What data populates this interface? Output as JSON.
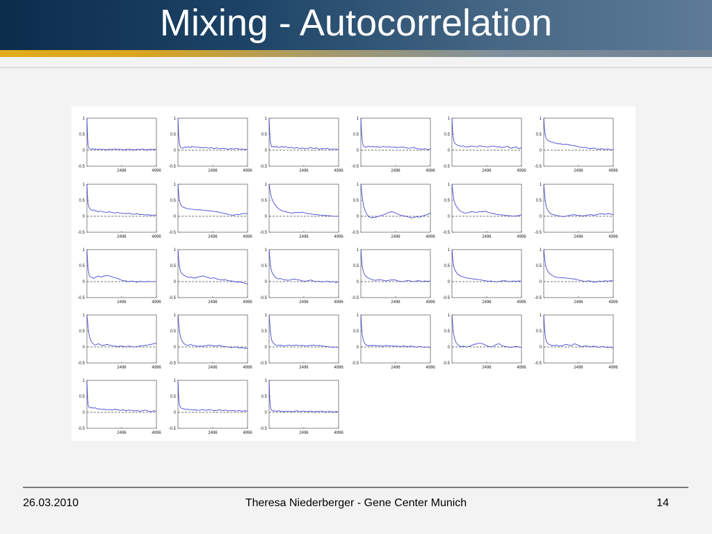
{
  "slide": {
    "title": "Mixing - Autocorrelation",
    "footer": {
      "date": "26.03.2010",
      "author": "Theresa Niederberger - Gene Center Munich",
      "page": "14"
    },
    "colors": {
      "title_bar": "#1d4467",
      "accent_bar": "#e1ac1c",
      "series_line": "#3030d0",
      "zero_line": "#444444"
    }
  },
  "chart_data": {
    "type": "line",
    "grid": false,
    "ylim": [
      -0.5,
      1
    ],
    "yticks": [
      "1",
      "0.5",
      "0",
      "-0.5"
    ],
    "xticks": [
      "2496",
      "4996"
    ],
    "xlim": [
      0,
      4996
    ],
    "x": [
      0,
      50,
      100,
      150,
      200,
      300,
      400,
      500,
      600,
      700,
      800,
      900,
      1000,
      1200,
      1400,
      1600,
      1800,
      2000,
      2200,
      2400,
      2600,
      2800,
      3000,
      3200,
      3400,
      3600,
      3800,
      4000,
      4200,
      4400,
      4600,
      4800,
      4996
    ],
    "panels": [
      {
        "values": [
          1,
          0.35,
          0.12,
          0.06,
          0.04,
          0.03,
          0.05,
          0.03,
          0.04,
          0.02,
          0.03,
          0.04,
          0.02,
          0.03,
          0.01,
          0.03,
          0.02,
          0.04,
          0.02,
          0.03,
          0.01,
          0.02,
          0.03,
          0.02,
          0.01,
          0.03,
          0.02,
          0.04,
          0.01,
          0.02,
          0.03,
          0.02,
          0.02
        ]
      },
      {
        "values": [
          1,
          0.45,
          0.22,
          0.12,
          0.08,
          0.06,
          0.07,
          0.1,
          0.08,
          0.11,
          0.1,
          0.08,
          0.12,
          0.09,
          0.1,
          0.08,
          0.07,
          0.09,
          0.06,
          0.08,
          0.05,
          0.07,
          0.04,
          0.06,
          0.05,
          0.03,
          0.05,
          0.04,
          0.06,
          0.03,
          0.04,
          0.02,
          0.03
        ]
      },
      {
        "values": [
          1,
          0.5,
          0.25,
          0.15,
          0.1,
          0.12,
          0.09,
          0.13,
          0.1,
          0.08,
          0.1,
          0.12,
          0.09,
          0.11,
          0.07,
          0.09,
          0.06,
          0.08,
          0.05,
          0.07,
          0.04,
          0.06,
          0.08,
          0.05,
          0.07,
          0.03,
          0.05,
          0.04,
          0.06,
          0.02,
          0.04,
          0.03,
          0.02
        ]
      },
      {
        "values": [
          1,
          0.55,
          0.3,
          0.18,
          0.12,
          0.1,
          0.09,
          0.12,
          0.13,
          0.1,
          0.11,
          0.12,
          0.1,
          0.11,
          0.09,
          0.12,
          0.1,
          0.11,
          0.09,
          0.1,
          0.08,
          0.09,
          0.1,
          0.08,
          0.06,
          0.07,
          0.09,
          0.05,
          0.04,
          0.03,
          0.05,
          0.02,
          0.03
        ]
      },
      {
        "values": [
          1,
          0.6,
          0.38,
          0.28,
          0.22,
          0.18,
          0.16,
          0.14,
          0.13,
          0.12,
          0.14,
          0.12,
          0.1,
          0.11,
          0.13,
          0.12,
          0.1,
          0.14,
          0.12,
          0.11,
          0.1,
          0.12,
          0.13,
          0.1,
          0.11,
          0.08,
          0.1,
          0.12,
          0.06,
          0.08,
          0.1,
          0.05,
          0.08
        ]
      },
      {
        "values": [
          1,
          0.7,
          0.5,
          0.4,
          0.35,
          0.3,
          0.28,
          0.27,
          0.25,
          0.24,
          0.22,
          0.22,
          0.2,
          0.2,
          0.18,
          0.19,
          0.17,
          0.15,
          0.14,
          0.12,
          0.1,
          0.08,
          0.09,
          0.06,
          0.05,
          0.07,
          0.04,
          0.03,
          0.05,
          0.02,
          0.04,
          0.01,
          0.03
        ]
      },
      {
        "values": [
          1,
          0.55,
          0.35,
          0.28,
          0.24,
          0.2,
          0.18,
          0.2,
          0.17,
          0.16,
          0.14,
          0.15,
          0.16,
          0.13,
          0.12,
          0.14,
          0.12,
          0.1,
          0.12,
          0.1,
          0.09,
          0.08,
          0.1,
          0.07,
          0.06,
          0.08,
          0.05,
          0.06,
          0.04,
          0.05,
          0.03,
          0.04,
          0.03
        ]
      },
      {
        "values": [
          1,
          0.7,
          0.5,
          0.42,
          0.36,
          0.3,
          0.28,
          0.26,
          0.25,
          0.24,
          0.23,
          0.22,
          0.22,
          0.21,
          0.2,
          0.2,
          0.19,
          0.18,
          0.17,
          0.16,
          0.15,
          0.14,
          0.12,
          0.1,
          0.08,
          0.06,
          0.04,
          0.03,
          0.06,
          0.05,
          0.08,
          0.09,
          0.07
        ]
      },
      {
        "values": [
          1,
          0.85,
          0.72,
          0.62,
          0.55,
          0.45,
          0.38,
          0.32,
          0.27,
          0.23,
          0.2,
          0.18,
          0.16,
          0.14,
          0.12,
          0.1,
          0.11,
          0.12,
          0.11,
          0.13,
          0.1,
          0.08,
          0.07,
          0.06,
          0.05,
          0.04,
          0.03,
          0.02,
          0.02,
          0.01,
          0.0,
          0.0,
          0.0
        ]
      },
      {
        "values": [
          1,
          0.8,
          0.6,
          0.45,
          0.32,
          0.18,
          0.08,
          0.02,
          -0.02,
          -0.04,
          -0.05,
          -0.03,
          -0.04,
          -0.01,
          0.02,
          0.04,
          0.08,
          0.12,
          0.14,
          0.12,
          0.08,
          0.04,
          0.02,
          0.0,
          -0.02,
          -0.05,
          -0.04,
          -0.01,
          -0.03,
          0.0,
          0.03,
          0.06,
          0.1
        ]
      },
      {
        "values": [
          1,
          0.8,
          0.62,
          0.5,
          0.42,
          0.32,
          0.26,
          0.2,
          0.16,
          0.14,
          0.12,
          0.1,
          0.1,
          0.12,
          0.14,
          0.13,
          0.12,
          0.15,
          0.14,
          0.16,
          0.12,
          0.1,
          0.08,
          0.06,
          0.05,
          0.04,
          0.03,
          0.02,
          0.01,
          0.0,
          0.01,
          0.02,
          0.05
        ]
      },
      {
        "values": [
          1,
          0.75,
          0.52,
          0.38,
          0.28,
          0.18,
          0.12,
          0.08,
          0.06,
          0.05,
          0.04,
          0.03,
          0.02,
          0.0,
          -0.01,
          0.0,
          0.02,
          0.04,
          0.05,
          0.03,
          0.02,
          0.01,
          0.02,
          0.04,
          0.05,
          0.03,
          0.05,
          0.07,
          0.08,
          0.06,
          0.08,
          0.07,
          0.05
        ]
      },
      {
        "values": [
          1,
          0.6,
          0.35,
          0.22,
          0.16,
          0.14,
          0.12,
          0.1,
          0.12,
          0.15,
          0.18,
          0.16,
          0.14,
          0.17,
          0.19,
          0.18,
          0.15,
          0.12,
          0.1,
          0.06,
          0.03,
          0.02,
          0.0,
          0.02,
          0.0,
          -0.02,
          0.01,
          0.0,
          -0.01,
          0.01,
          0.0,
          0.0,
          0.0
        ]
      },
      {
        "values": [
          1,
          0.7,
          0.48,
          0.36,
          0.3,
          0.24,
          0.2,
          0.18,
          0.16,
          0.14,
          0.13,
          0.15,
          0.12,
          0.11,
          0.14,
          0.16,
          0.18,
          0.15,
          0.12,
          0.1,
          0.12,
          0.08,
          0.06,
          0.05,
          0.06,
          0.03,
          0.02,
          0.01,
          -0.02,
          -0.01,
          -0.03,
          -0.05,
          -0.08
        ]
      },
      {
        "values": [
          1,
          0.75,
          0.5,
          0.38,
          0.3,
          0.22,
          0.16,
          0.12,
          0.1,
          0.08,
          0.1,
          0.08,
          0.06,
          0.05,
          0.04,
          0.06,
          0.08,
          0.06,
          0.05,
          0.02,
          0.01,
          0.03,
          0.05,
          0.02,
          0.0,
          0.01,
          -0.01,
          0.0,
          0.01,
          -0.02,
          0.0,
          -0.03,
          -0.01
        ]
      },
      {
        "values": [
          1,
          0.7,
          0.48,
          0.36,
          0.28,
          0.2,
          0.15,
          0.12,
          0.1,
          0.08,
          0.06,
          0.05,
          0.04,
          0.05,
          0.06,
          0.04,
          0.02,
          0.04,
          0.05,
          0.06,
          0.03,
          0.01,
          0.0,
          0.02,
          0.04,
          0.01,
          0.0,
          0.02,
          0.03,
          0.0,
          0.02,
          0.01,
          0.02
        ]
      },
      {
        "values": [
          1,
          0.75,
          0.55,
          0.45,
          0.38,
          0.3,
          0.24,
          0.2,
          0.18,
          0.16,
          0.15,
          0.14,
          0.12,
          0.1,
          0.09,
          0.08,
          0.07,
          0.06,
          0.04,
          0.03,
          0.01,
          0.02,
          0.0,
          -0.01,
          0.01,
          0.02,
          0.03,
          0.01,
          0.0,
          0.02,
          0.01,
          0.02,
          0.01
        ]
      },
      {
        "values": [
          1,
          0.8,
          0.6,
          0.48,
          0.4,
          0.32,
          0.26,
          0.22,
          0.2,
          0.17,
          0.15,
          0.14,
          0.13,
          0.12,
          0.12,
          0.11,
          0.1,
          0.09,
          0.08,
          0.06,
          0.04,
          0.02,
          0.0,
          0.03,
          0.01,
          -0.02,
          -0.01,
          0.02,
          0.0,
          0.03,
          0.01,
          0.03,
          0.02
        ]
      },
      {
        "values": [
          1,
          0.78,
          0.55,
          0.4,
          0.3,
          0.18,
          0.12,
          0.08,
          0.06,
          0.07,
          0.1,
          0.09,
          0.06,
          0.05,
          0.08,
          0.06,
          0.04,
          0.03,
          0.01,
          0.03,
          0.02,
          0.0,
          0.03,
          0.01,
          0.0,
          0.01,
          0.03,
          0.04,
          0.05,
          0.06,
          0.08,
          0.1,
          0.12
        ]
      },
      {
        "values": [
          1,
          0.75,
          0.52,
          0.38,
          0.28,
          0.18,
          0.12,
          0.08,
          0.06,
          0.05,
          0.06,
          0.08,
          0.06,
          0.04,
          0.02,
          0.03,
          0.02,
          0.04,
          0.06,
          0.05,
          0.03,
          0.04,
          0.05,
          0.02,
          0.01,
          0.0,
          -0.02,
          -0.01,
          0.0,
          -0.03,
          -0.02,
          -0.05,
          -0.03
        ]
      },
      {
        "values": [
          1,
          0.72,
          0.46,
          0.3,
          0.2,
          0.12,
          0.08,
          0.06,
          0.05,
          0.04,
          0.06,
          0.05,
          0.03,
          0.04,
          0.06,
          0.04,
          0.05,
          0.06,
          0.04,
          0.05,
          0.03,
          0.04,
          0.05,
          0.06,
          0.04,
          0.05,
          0.03,
          0.02,
          0.01,
          0.0,
          -0.01,
          0.0,
          -0.02
        ]
      },
      {
        "values": [
          1,
          0.65,
          0.4,
          0.26,
          0.18,
          0.1,
          0.06,
          0.04,
          0.05,
          0.03,
          0.06,
          0.04,
          0.05,
          0.03,
          0.04,
          0.02,
          0.05,
          0.03,
          0.04,
          0.02,
          0.03,
          0.01,
          0.03,
          0.02,
          0.01,
          0.03,
          0.01,
          -0.01,
          0.02,
          0.0,
          -0.01,
          0.0,
          -0.02
        ]
      },
      {
        "values": [
          1,
          0.72,
          0.48,
          0.34,
          0.25,
          0.14,
          0.08,
          0.04,
          0.02,
          0.01,
          0.03,
          0.02,
          0.0,
          0.01,
          0.05,
          0.08,
          0.1,
          0.12,
          0.1,
          0.06,
          0.02,
          0.0,
          0.03,
          0.08,
          0.1,
          0.04,
          0.02,
          0.0,
          -0.02,
          0.0,
          0.02,
          0.0,
          -0.01
        ]
      },
      {
        "values": [
          1,
          0.65,
          0.38,
          0.24,
          0.16,
          0.1,
          0.08,
          0.06,
          0.05,
          0.04,
          0.05,
          0.06,
          0.04,
          0.03,
          0.05,
          0.08,
          0.06,
          0.04,
          0.1,
          0.07,
          0.03,
          0.01,
          0.04,
          0.02,
          0.0,
          0.03,
          0.01,
          -0.01,
          0.02,
          0.0,
          -0.02,
          0.0,
          -0.04
        ]
      },
      {
        "values": [
          1,
          0.4,
          0.2,
          0.16,
          0.15,
          0.14,
          0.14,
          0.13,
          0.14,
          0.12,
          0.1,
          0.11,
          0.09,
          0.1,
          0.08,
          0.09,
          0.07,
          0.1,
          0.08,
          0.06,
          0.08,
          0.05,
          0.07,
          0.06,
          0.04,
          0.06,
          0.03,
          0.05,
          0.07,
          0.04,
          0.02,
          0.05,
          0.03
        ]
      },
      {
        "values": [
          1,
          0.45,
          0.25,
          0.18,
          0.14,
          0.12,
          0.11,
          0.1,
          0.09,
          0.1,
          0.08,
          0.09,
          0.07,
          0.08,
          0.06,
          0.07,
          0.09,
          0.06,
          0.08,
          0.07,
          0.05,
          0.06,
          0.08,
          0.05,
          0.07,
          0.04,
          0.06,
          0.05,
          0.04,
          0.06,
          0.03,
          0.05,
          0.04
        ]
      },
      {
        "values": [
          1,
          0.38,
          0.16,
          0.08,
          0.06,
          0.04,
          0.05,
          0.03,
          0.04,
          0.05,
          0.03,
          0.04,
          0.02,
          0.03,
          0.04,
          0.02,
          0.03,
          0.05,
          0.02,
          0.04,
          0.03,
          0.02,
          0.04,
          0.01,
          0.03,
          0.02,
          0.04,
          0.01,
          0.02,
          0.03,
          0.01,
          0.02,
          0.02
        ]
      }
    ]
  }
}
